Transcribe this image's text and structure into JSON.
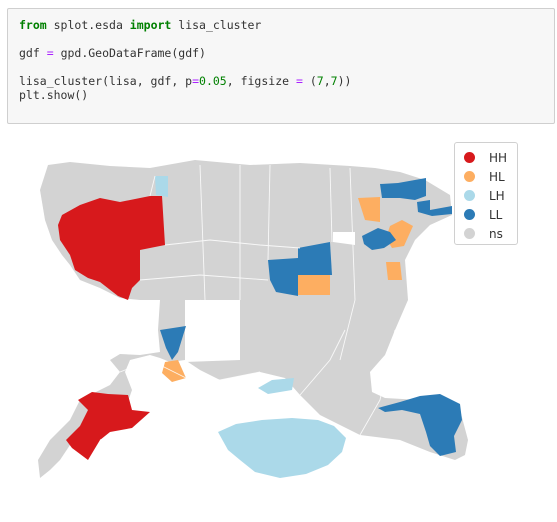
{
  "code": {
    "line1": {
      "kw_from": "from",
      "module": " splot.esda ",
      "kw_import": "import",
      "name": " lisa_cluster"
    },
    "line2": {
      "pre": "gdf ",
      "eq": "=",
      "post": " gpd.GeoDataFrame(gdf)"
    },
    "line3": {
      "pre": "lisa_cluster(lisa, gdf, p",
      "eq": "=",
      "num1": "0.05",
      "mid": ", figsize ",
      "eq2": "=",
      "mid2": " (",
      "num2": "7",
      "comma": ",",
      "num3": "7",
      "post": "))"
    },
    "line4": {
      "text": "plt.show()"
    }
  },
  "legend": {
    "items": [
      {
        "label": "HH",
        "color": "#d7191c"
      },
      {
        "label": "HL",
        "color": "#fdae61"
      },
      {
        "label": "LH",
        "color": "#abd9e9"
      },
      {
        "label": "LL",
        "color": "#2c7bb6"
      },
      {
        "label": "ns",
        "color": "#d3d3d3"
      }
    ]
  },
  "colors": {
    "HH": "#d7191c",
    "HL": "#fdae61",
    "LH": "#abd9e9",
    "LL": "#2c7bb6",
    "ns": "#d3d3d3"
  }
}
